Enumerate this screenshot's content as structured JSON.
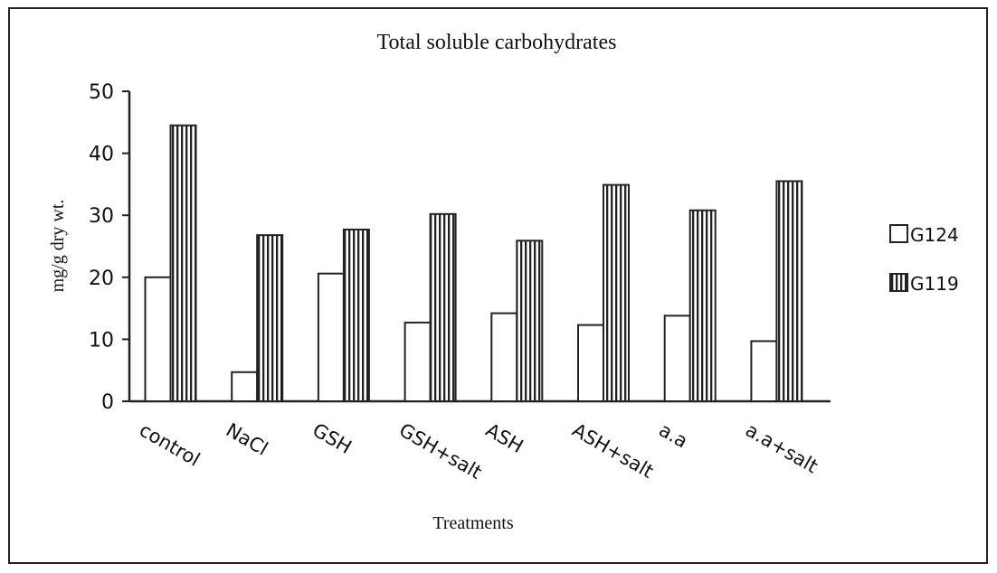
{
  "chart_data": {
    "type": "bar",
    "title": "Total soluble carbohydrates",
    "xlabel": "Treatments",
    "ylabel": "mg/g dry wt.",
    "ylim": [
      0,
      50
    ],
    "yticks": [
      0,
      10,
      20,
      30,
      40,
      50
    ],
    "grid": false,
    "legend_position": "right",
    "categories": [
      "control",
      "NaCl",
      "GSH",
      "GSH+salt",
      "ASH",
      "ASH+salt",
      "a.a",
      "a.a+salt"
    ],
    "series": [
      {
        "name": "G124",
        "pattern": "plain",
        "values": [
          20.0,
          4.7,
          20.6,
          12.7,
          14.2,
          12.3,
          13.8,
          9.7
        ]
      },
      {
        "name": "G119",
        "pattern": "vertical-stripes",
        "values": [
          44.5,
          26.8,
          27.7,
          30.2,
          25.9,
          34.9,
          30.8,
          35.5
        ]
      }
    ],
    "colors": {
      "axis": "#222222",
      "bar_fill": "#ffffff",
      "stripe": "#222222"
    }
  }
}
